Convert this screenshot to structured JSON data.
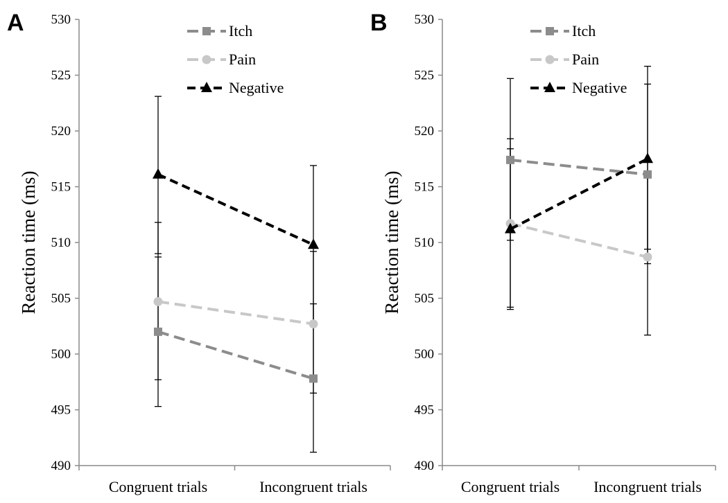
{
  "chart_data": [
    {
      "type": "line",
      "panel_label": "A",
      "categories": [
        "Congruent trials",
        "Incongruent trials"
      ],
      "ylabel": "Reaction time (ms)",
      "ylim": [
        490,
        530
      ],
      "yticks": [
        490,
        495,
        500,
        505,
        510,
        515,
        520,
        525,
        530
      ],
      "legend_position": "top-center",
      "grid": false,
      "series": [
        {
          "name": "Itch",
          "color": "#8c8c8c",
          "marker": "square",
          "values": [
            502.0,
            497.8
          ],
          "error_low": [
            495.3,
            491.2
          ],
          "error_high": [
            508.7,
            504.5
          ]
        },
        {
          "name": "Pain",
          "color": "#c8c8c8",
          "marker": "circle",
          "values": [
            504.7,
            502.7
          ],
          "error_low": [
            497.7,
            496.5
          ],
          "error_high": [
            511.8,
            509.2
          ]
        },
        {
          "name": "Negative",
          "color": "#000000",
          "marker": "triangle",
          "values": [
            516.1,
            509.8
          ],
          "error_low": [
            509.0,
            502.7
          ],
          "error_high": [
            523.1,
            516.9
          ]
        }
      ]
    },
    {
      "type": "line",
      "panel_label": "B",
      "categories": [
        "Congruent trials",
        "Incongruent trials"
      ],
      "ylabel": "Reaction time (ms)",
      "ylim": [
        490,
        530
      ],
      "yticks": [
        490,
        495,
        500,
        505,
        510,
        515,
        520,
        525,
        530
      ],
      "legend_position": "top-center",
      "grid": false,
      "series": [
        {
          "name": "Itch",
          "color": "#8c8c8c",
          "marker": "square",
          "values": [
            517.4,
            516.1
          ],
          "error_low": [
            510.2,
            508.1
          ],
          "error_high": [
            524.7,
            524.2
          ]
        },
        {
          "name": "Pain",
          "color": "#c8c8c8",
          "marker": "circle",
          "values": [
            511.7,
            508.7
          ],
          "error_low": [
            504.2,
            501.7
          ],
          "error_high": [
            519.3,
            515.8
          ]
        },
        {
          "name": "Negative",
          "color": "#000000",
          "marker": "triangle",
          "values": [
            511.2,
            517.5
          ],
          "error_low": [
            504.0,
            509.4
          ],
          "error_high": [
            518.4,
            525.8
          ]
        }
      ]
    }
  ]
}
